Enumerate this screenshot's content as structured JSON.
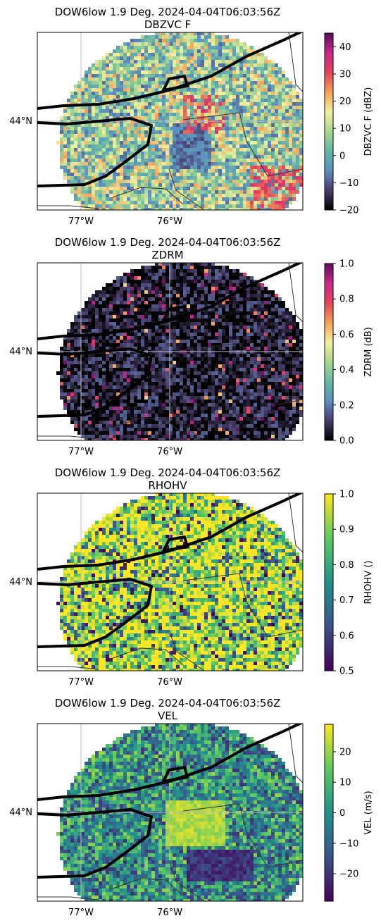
{
  "chart_data": [
    {
      "type": "heatmap",
      "title": "DOW6low 1.9 Deg. 2024-04-04T06:03:56Z",
      "subtitle": "DBZVC F",
      "field": "DBZVC F",
      "colorbar_label": "DBZVC F (dBZ)",
      "colorbar_range": [
        -20,
        45
      ],
      "colorbar_ticks": [
        -20,
        -10,
        0,
        10,
        20,
        30,
        40
      ],
      "colormap": "ChaseSpectral",
      "colormap_stops": [
        "#000000",
        "#4a3d6b",
        "#5b8fc0",
        "#67b7a6",
        "#a9d98f",
        "#f3f0a0",
        "#f5a25a",
        "#e0455a",
        "#c82a8a",
        "#5e0a5e"
      ],
      "x_ticks": [
        "77°W",
        "76°W"
      ],
      "y_ticks": [
        "44°N"
      ]
    },
    {
      "type": "heatmap",
      "title": "DOW6low 1.9 Deg. 2024-04-04T06:03:56Z",
      "subtitle": "ZDRM",
      "field": "ZDRM",
      "colorbar_label": "ZDRM (dB)",
      "colorbar_range": [
        0.0,
        1.0
      ],
      "colorbar_ticks": [
        0.0,
        0.2,
        0.4,
        0.6,
        0.8,
        1.0
      ],
      "colormap": "ChaseSpectral",
      "colormap_stops": [
        "#000000",
        "#4a3d6b",
        "#5b8fc0",
        "#67b7a6",
        "#a9d98f",
        "#f3f0a0",
        "#f5a25a",
        "#e0455a",
        "#c82a8a",
        "#5e0a5e"
      ],
      "x_ticks": [
        "77°W",
        "76°W"
      ],
      "y_ticks": [
        "44°N"
      ]
    },
    {
      "type": "heatmap",
      "title": "DOW6low 1.9 Deg. 2024-04-04T06:03:56Z",
      "subtitle": "RHOHV",
      "field": "RHOHV",
      "colorbar_label": "RHOHV ()",
      "colorbar_range": [
        0.5,
        1.0
      ],
      "colorbar_ticks": [
        0.5,
        0.6,
        0.7,
        0.8,
        0.9,
        1.0
      ],
      "colormap": "viridis",
      "colormap_stops": [
        "#440154",
        "#3b528b",
        "#21918c",
        "#5ec962",
        "#fde725"
      ],
      "x_ticks": [
        "77°W",
        "76°W"
      ],
      "y_ticks": [
        "44°N"
      ]
    },
    {
      "type": "heatmap",
      "title": "DOW6low 1.9 Deg. 2024-04-04T06:03:56Z",
      "subtitle": "VEL",
      "field": "VEL",
      "colorbar_label": "VEL (m/s)",
      "colorbar_range": [
        -29,
        29
      ],
      "colorbar_ticks": [
        -20,
        -10,
        0,
        10,
        20
      ],
      "colormap": "viridis",
      "colormap_stops": [
        "#440154",
        "#3b528b",
        "#21918c",
        "#5ec962",
        "#fde725"
      ],
      "x_ticks": [
        "77°W",
        "76°W"
      ],
      "y_ticks": [
        "44°N"
      ]
    }
  ]
}
